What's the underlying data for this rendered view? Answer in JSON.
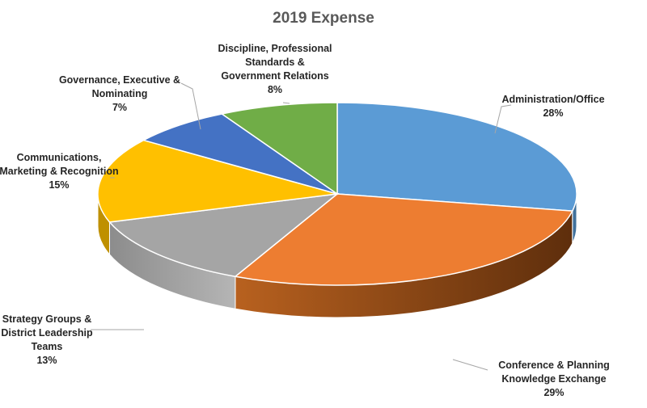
{
  "chart_data": {
    "type": "pie",
    "title": "2019 Expense",
    "three_d": true,
    "slices": [
      {
        "label_lines": [
          "Administration/Office"
        ],
        "value": 28,
        "value_label": "28%",
        "color": "#5b9bd5",
        "side_color": "#41719c"
      },
      {
        "label_lines": [
          "Conference & Planning",
          "Knowledge Exchange"
        ],
        "value": 29,
        "value_label": "29%",
        "color": "#ed7d31",
        "side_color": "#8a4417"
      },
      {
        "label_lines": [
          "Strategy Groups &",
          "District Leadership",
          "Teams"
        ],
        "value": 13,
        "value_label": "13%",
        "color": "#a5a5a5",
        "side_color": "#7b7b7b"
      },
      {
        "label_lines": [
          "Communications,",
          "Marketing & Recognition"
        ],
        "value": 15,
        "value_label": "15%",
        "color": "#ffc000",
        "side_color": "#bf9000"
      },
      {
        "label_lines": [
          "Governance, Executive &",
          "Nominating"
        ],
        "value": 7,
        "value_label": "7%",
        "color": "#4472c4",
        "side_color": "#2f5597"
      },
      {
        "label_lines": [
          "Discipline, Professional",
          "Standards &",
          "Government Relations"
        ],
        "value": 8,
        "value_label": "8%",
        "color": "#70ad47",
        "side_color": "#507e32"
      }
    ]
  }
}
